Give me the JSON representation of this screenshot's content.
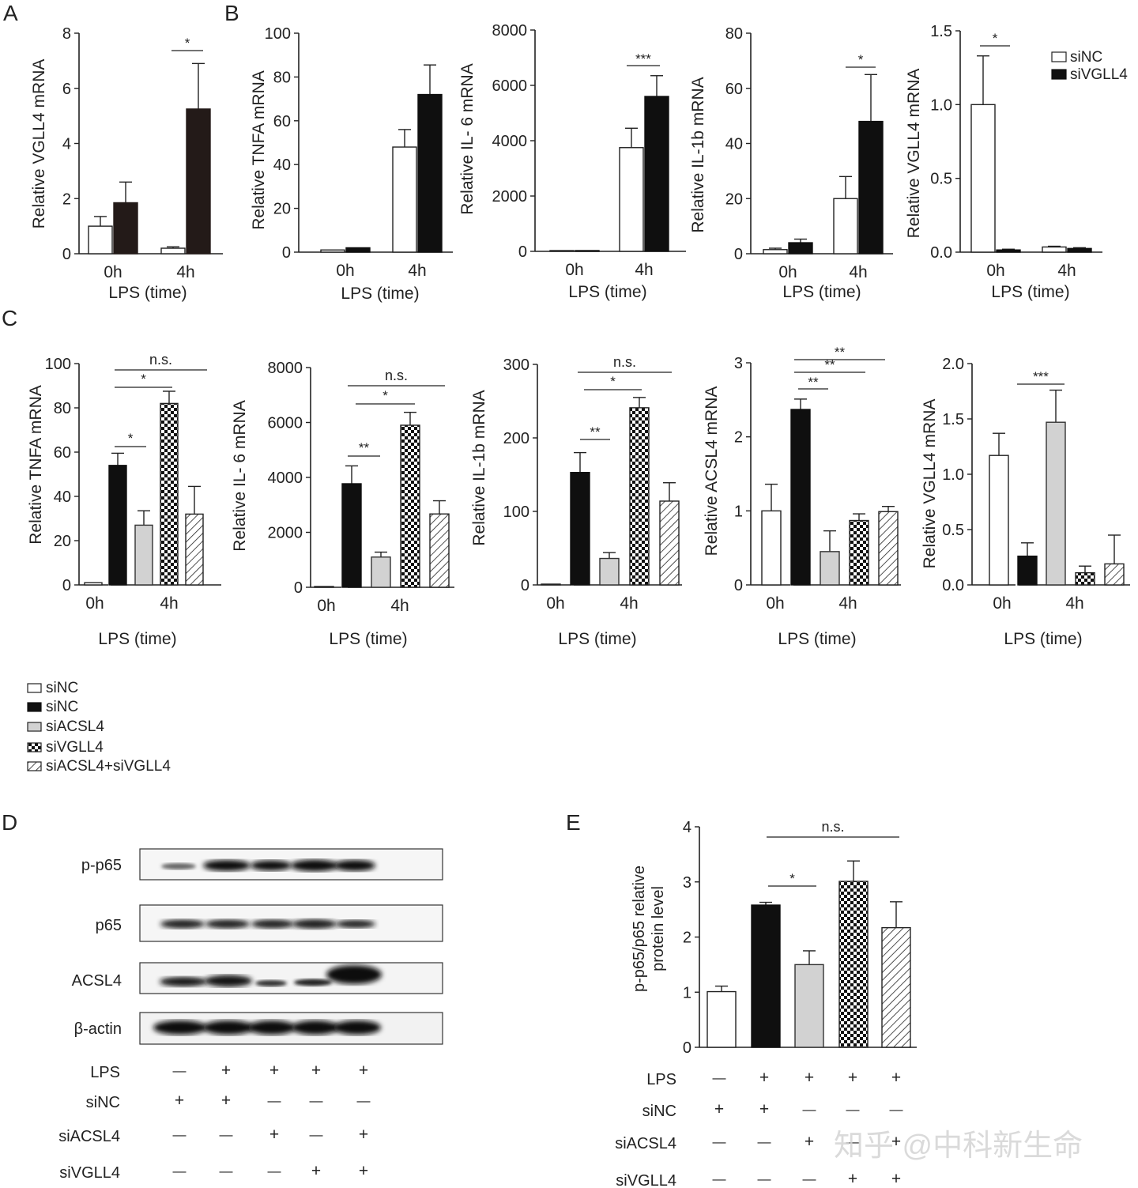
{
  "panel_letters": [
    "A",
    "B",
    "C",
    "D",
    "E"
  ],
  "x_label": "LPS (time)",
  "ab_time_labels": [
    "0h",
    "4h"
  ],
  "ab_legend": [
    {
      "label": "siNC",
      "pattern": "white"
    },
    {
      "label": "siVGLL4",
      "pattern": "black"
    }
  ],
  "c_legend": [
    {
      "label": "siNC",
      "pattern": "white"
    },
    {
      "label": "siNC",
      "pattern": "black"
    },
    {
      "label": "siACSL4",
      "pattern": "gray"
    },
    {
      "label": "siVGLL4",
      "pattern": "checker"
    },
    {
      "label": "siACSL4+siVGLL4",
      "pattern": "hatch"
    }
  ],
  "blot": {
    "labels": [
      "p-p65",
      "p65",
      "ACSL4",
      "β-actin"
    ],
    "conditions": {
      "row_labels": [
        "LPS",
        "siNC",
        "siACSL4",
        "siVGLL4"
      ],
      "values": [
        [
          "—",
          "+",
          "+",
          "+",
          "+"
        ],
        [
          "+",
          "+",
          "—",
          "—",
          "—"
        ],
        [
          "—",
          "—",
          "+",
          "—",
          "+"
        ],
        [
          "—",
          "—",
          "—",
          "+",
          "+"
        ]
      ]
    }
  },
  "watermark": "知乎 @中科新生命",
  "colors": {
    "ink": "#1a1a1a",
    "dark_bar": "#231a18",
    "gray_bar": "#d2d2d2"
  },
  "chart_data": [
    {
      "id": "A1",
      "panel": "A",
      "type": "bar",
      "ylabel": "Relative VGLL4 mRNA",
      "ylim": [
        0,
        8
      ],
      "yticks": [
        "0",
        "2",
        "4",
        "6",
        "8"
      ],
      "categories": [
        "0h",
        "4h"
      ],
      "series": [
        {
          "name": "siNC",
          "values": [
            1.0,
            0.2
          ],
          "errors": [
            0.35,
            0.05
          ]
        },
        {
          "name": "siVGLL4",
          "values": [
            1.85,
            5.25
          ],
          "errors": [
            0.75,
            1.65
          ]
        }
      ],
      "sig": [
        {
          "text": "*"
        }
      ]
    },
    {
      "id": "B1",
      "panel": "B",
      "type": "bar",
      "ylabel": "Relative TNFA mRNA",
      "ylim": [
        0,
        100
      ],
      "yticks": [
        "0",
        "20",
        "40",
        "60",
        "80",
        "100"
      ],
      "categories": [
        "0h",
        "4h"
      ],
      "series": [
        {
          "name": "siNC",
          "values": [
            1.0,
            48
          ],
          "errors": [
            0,
            8
          ]
        },
        {
          "name": "siVGLL4",
          "values": [
            2.0,
            72
          ],
          "errors": [
            0,
            13.5
          ]
        }
      ],
      "sig": []
    },
    {
      "id": "B2",
      "panel": "B",
      "type": "bar",
      "ylabel": "Relative IL- 6 mRNA",
      "ylim": [
        0,
        8000
      ],
      "yticks": [
        "0",
        "2000",
        "4000",
        "6000",
        "8000"
      ],
      "categories": [
        "0h",
        "4h"
      ],
      "series": [
        {
          "name": "siNC",
          "values": [
            0,
            3750
          ],
          "errors": [
            0,
            700
          ]
        },
        {
          "name": "siVGLL4",
          "values": [
            20,
            5600
          ],
          "errors": [
            0,
            750
          ]
        }
      ],
      "sig": [
        {
          "text": "***"
        }
      ]
    },
    {
      "id": "B3",
      "panel": "B",
      "type": "bar",
      "ylabel": "Relative IL-1b mRNA",
      "ylim": [
        0,
        80
      ],
      "yticks": [
        "0",
        "20",
        "40",
        "60",
        "80"
      ],
      "categories": [
        "0h",
        "4h"
      ],
      "series": [
        {
          "name": "siNC",
          "values": [
            1.5,
            20
          ],
          "errors": [
            0.5,
            8
          ]
        },
        {
          "name": "siVGLL4",
          "values": [
            4,
            48
          ],
          "errors": [
            1.3,
            17
          ]
        }
      ],
      "sig": [
        {
          "text": "*"
        }
      ]
    },
    {
      "id": "B4",
      "panel": "B",
      "type": "bar",
      "ylabel": "Relative VGLL4 mRNA",
      "ylim": [
        0,
        1.5
      ],
      "yticks": [
        "0.0",
        "0.5",
        "1.0",
        "1.5"
      ],
      "categories": [
        "0h",
        "4h"
      ],
      "series": [
        {
          "name": "siNC",
          "values": [
            1.0,
            0.035
          ],
          "errors": [
            0.33,
            0.005
          ]
        },
        {
          "name": "siVGLL4",
          "values": [
            0.015,
            0.025
          ],
          "errors": [
            0.005,
            0.005
          ]
        }
      ],
      "sig": [
        {
          "text": "*"
        }
      ]
    },
    {
      "id": "C1",
      "panel": "C",
      "type": "bar",
      "ylabel": "Relative TNFA mRNA",
      "ylim": [
        0,
        100
      ],
      "yticks": [
        "0",
        "20",
        "40",
        "60",
        "80",
        "100"
      ],
      "categories": [
        "siNC 0h",
        "siNC",
        "siACSL4",
        "siVGLL4",
        "siACSL4+siVGLL4"
      ],
      "values": [
        1,
        54,
        27,
        82,
        32
      ],
      "errors": [
        0,
        5.5,
        6.5,
        5.5,
        12.5
      ],
      "sig": [
        {
          "text": "*"
        },
        {
          "text": "*"
        },
        {
          "text": "n.s."
        }
      ]
    },
    {
      "id": "C2",
      "panel": "C",
      "type": "bar",
      "ylabel": "Relative IL- 6 mRNA",
      "ylim": [
        0,
        8000
      ],
      "yticks": [
        "0",
        "2000",
        "4000",
        "6000",
        "8000"
      ],
      "categories": [
        "siNC 0h",
        "siNC",
        "siACSL4",
        "siVGLL4",
        "siACSL4+siVGLL4"
      ],
      "values": [
        0,
        3770,
        1100,
        5900,
        2670
      ],
      "errors": [
        0,
        650,
        180,
        470,
        480
      ],
      "sig": [
        {
          "text": "**"
        },
        {
          "text": "*"
        },
        {
          "text": "n.s."
        }
      ]
    },
    {
      "id": "C3",
      "panel": "C",
      "type": "bar",
      "ylabel": "Relative IL-1b mRNA",
      "ylim": [
        0,
        300
      ],
      "yticks": [
        "0",
        "100",
        "200",
        "300"
      ],
      "categories": [
        "siNC 0h",
        "siNC",
        "siACSL4",
        "siVGLL4",
        "siACSL4+siVGLL4"
      ],
      "values": [
        1,
        153,
        36,
        241,
        114
      ],
      "errors": [
        0,
        27,
        8,
        14,
        25
      ],
      "sig": [
        {
          "text": "**"
        },
        {
          "text": "*"
        },
        {
          "text": "n.s."
        }
      ]
    },
    {
      "id": "C4",
      "panel": "C",
      "type": "bar",
      "ylabel": "Relative ACSL4 mRNA",
      "ylim": [
        0,
        3
      ],
      "yticks": [
        "0",
        "1",
        "2",
        "3"
      ],
      "categories": [
        "siNC 0h",
        "siNC",
        "siACSL4",
        "siVGLL4",
        "siACSL4+siVGLL4"
      ],
      "values": [
        1.0,
        2.37,
        0.45,
        0.87,
        0.99
      ],
      "errors": [
        0.36,
        0.14,
        0.28,
        0.09,
        0.07
      ],
      "sig": [
        {
          "text": "**"
        },
        {
          "text": "**"
        },
        {
          "text": "**"
        }
      ]
    },
    {
      "id": "C5",
      "panel": "C",
      "type": "bar",
      "ylabel": "Relative VGLL4 mRNA",
      "ylim": [
        0,
        2.0
      ],
      "yticks": [
        "0.0",
        "0.5",
        "1.0",
        "1.5",
        "2.0"
      ],
      "categories": [
        "siNC 0h",
        "siNC",
        "siACSL4",
        "siVGLL4",
        "siACSL4+siVGLL4"
      ],
      "values": [
        1.17,
        0.26,
        1.47,
        0.11,
        0.19
      ],
      "errors": [
        0.2,
        0.12,
        0.29,
        0.06,
        0.26
      ],
      "sig": [
        {
          "text": "***"
        }
      ]
    },
    {
      "id": "E",
      "panel": "E",
      "type": "bar",
      "ylabel": "p-p65/p65 relative protein level",
      "ylim": [
        0,
        4
      ],
      "yticks": [
        "0",
        "1",
        "2",
        "3",
        "4"
      ],
      "categories": [
        "siNC",
        "siNC+LPS",
        "siACSL4+LPS",
        "siVGLL4+LPS",
        "siACSL4+siVGLL4+LPS"
      ],
      "values": [
        1.01,
        2.58,
        1.5,
        3.01,
        2.17
      ],
      "errors": [
        0.1,
        0.05,
        0.25,
        0.37,
        0.47
      ],
      "sig": [
        {
          "text": "*"
        },
        {
          "text": "n.s."
        }
      ]
    }
  ]
}
